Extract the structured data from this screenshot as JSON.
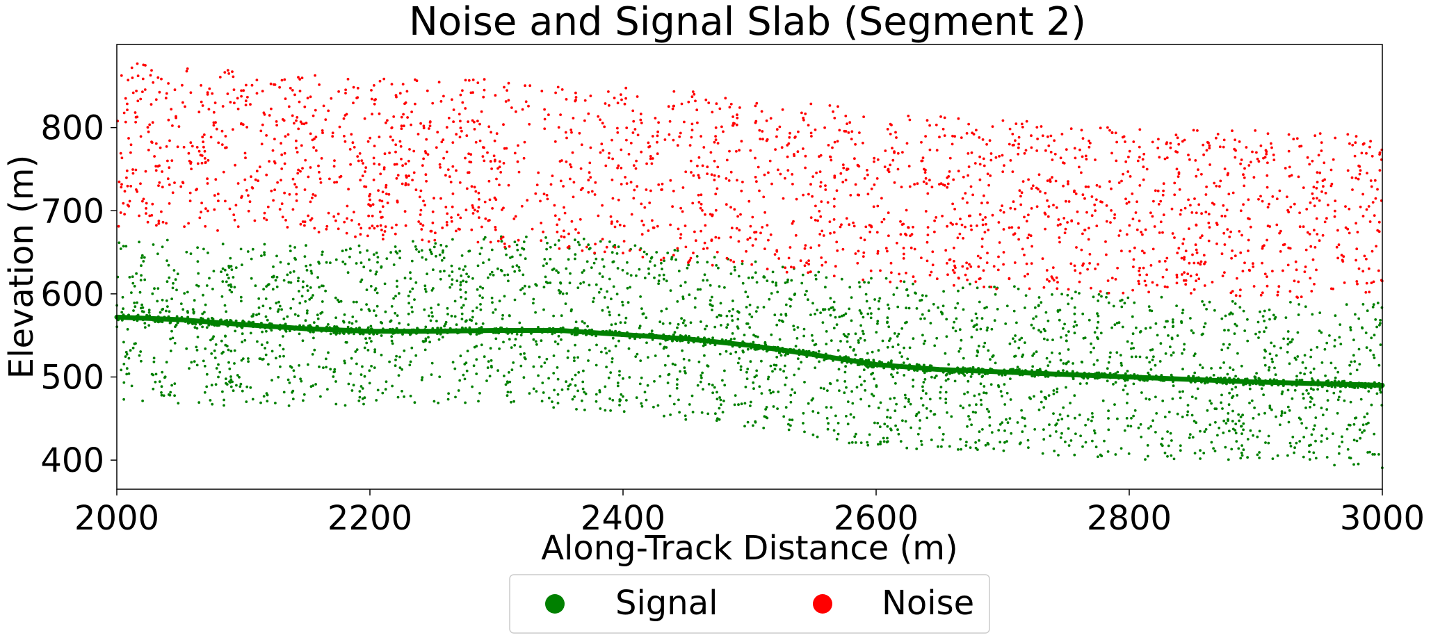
{
  "chart_data": {
    "type": "scatter",
    "title": "Noise and Signal Slab (Segment 2)",
    "xlabel": "Along-Track Distance (m)",
    "ylabel": "Elevation (m)",
    "xlim": [
      2000,
      3000
    ],
    "ylim": [
      365,
      900
    ],
    "x_ticks": [
      2000,
      2200,
      2400,
      2600,
      2800,
      3000
    ],
    "y_ticks": [
      400,
      500,
      600,
      700,
      800
    ],
    "grid": false,
    "legend_position": "bottom-center, below plot",
    "series": [
      {
        "name": "Signal",
        "color": "#008000",
        "ground_line": [
          [
            2000,
            572
          ],
          [
            2050,
            569
          ],
          [
            2100,
            563
          ],
          [
            2150,
            558
          ],
          [
            2200,
            555
          ],
          [
            2250,
            555
          ],
          [
            2300,
            556
          ],
          [
            2350,
            556
          ],
          [
            2400,
            551
          ],
          [
            2450,
            546
          ],
          [
            2500,
            538
          ],
          [
            2550,
            527
          ],
          [
            2600,
            515
          ],
          [
            2650,
            509
          ],
          [
            2700,
            506
          ],
          [
            2750,
            503
          ],
          [
            2800,
            500
          ],
          [
            2850,
            497
          ],
          [
            2900,
            494
          ],
          [
            2950,
            492
          ],
          [
            3000,
            490
          ]
        ],
        "scatter_band": [
          [
            2000,
            470,
            670
          ],
          [
            2100,
            460,
            660
          ],
          [
            2200,
            465,
            660
          ],
          [
            2300,
            470,
            670
          ],
          [
            2400,
            455,
            665
          ],
          [
            2500,
            440,
            640
          ],
          [
            2600,
            415,
            620
          ],
          [
            2700,
            410,
            610
          ],
          [
            2800,
            400,
            600
          ],
          [
            2900,
            400,
            590
          ],
          [
            3000,
            390,
            590
          ]
        ],
        "scatter_count": 2600
      },
      {
        "name": "Noise",
        "color": "#ff0000",
        "scatter_band": [
          [
            2000,
            680,
            880
          ],
          [
            2100,
            675,
            868
          ],
          [
            2200,
            665,
            860
          ],
          [
            2300,
            655,
            858
          ],
          [
            2400,
            645,
            850
          ],
          [
            2500,
            630,
            840
          ],
          [
            2600,
            615,
            820
          ],
          [
            2700,
            605,
            810
          ],
          [
            2800,
            600,
            800
          ],
          [
            2900,
            595,
            798
          ],
          [
            3000,
            595,
            790
          ]
        ],
        "scatter_count": 2200
      }
    ]
  },
  "colors": {
    "signal": "#008000",
    "noise": "#ff0000",
    "axis": "#000000",
    "background": "#ffffff"
  }
}
